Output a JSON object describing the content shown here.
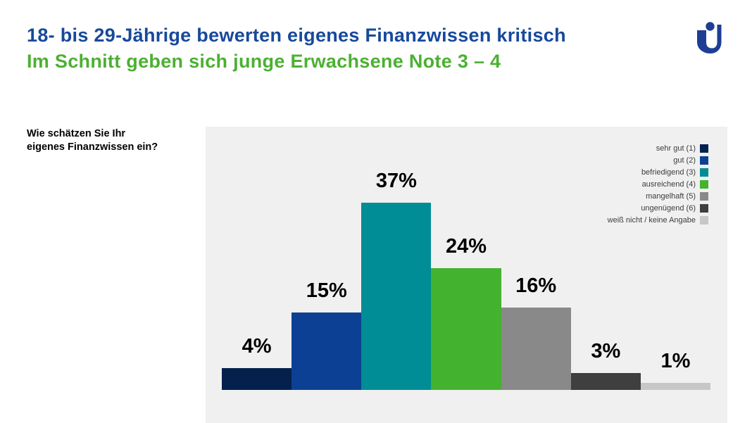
{
  "header": {
    "title": "18- bis 29-Jährige bewerten eigenes Finanzwissen kritisch",
    "subtitle": "Im Schnitt geben sich junge Erwachsene Note 3 – 4",
    "title_color": "#17499b",
    "subtitle_color": "#4cb032"
  },
  "logo": {
    "name": "union-investment-logo",
    "color": "#1d3e94"
  },
  "question": {
    "line1": "Wie schätzen Sie Ihr",
    "line2": "eigenes Finanzwissen ein?"
  },
  "chart_data": {
    "type": "bar",
    "question": "Wie schätzen Sie Ihr eigenes Finanzwissen ein?",
    "categories": [
      "sehr gut (1)",
      "gut (2)",
      "befriedigend (3)",
      "ausreichend (4)",
      "mangelhaft (5)",
      "ungenügend (6)",
      "weiß nicht / keine Angabe"
    ],
    "values": [
      4,
      15,
      37,
      24,
      16,
      3,
      1
    ],
    "labels": [
      "4%",
      "15%",
      "37%",
      "24%",
      "16%",
      "3%",
      "1%"
    ],
    "unit": "%",
    "colors": [
      "#04214d",
      "#0c4094",
      "#008d95",
      "#43b32f",
      "#898989",
      "#3f3f3f",
      "#c7c7c7"
    ],
    "legend_position": "top-right",
    "grid": false,
    "axes": "none",
    "plot_background": "#f0f0f1"
  }
}
